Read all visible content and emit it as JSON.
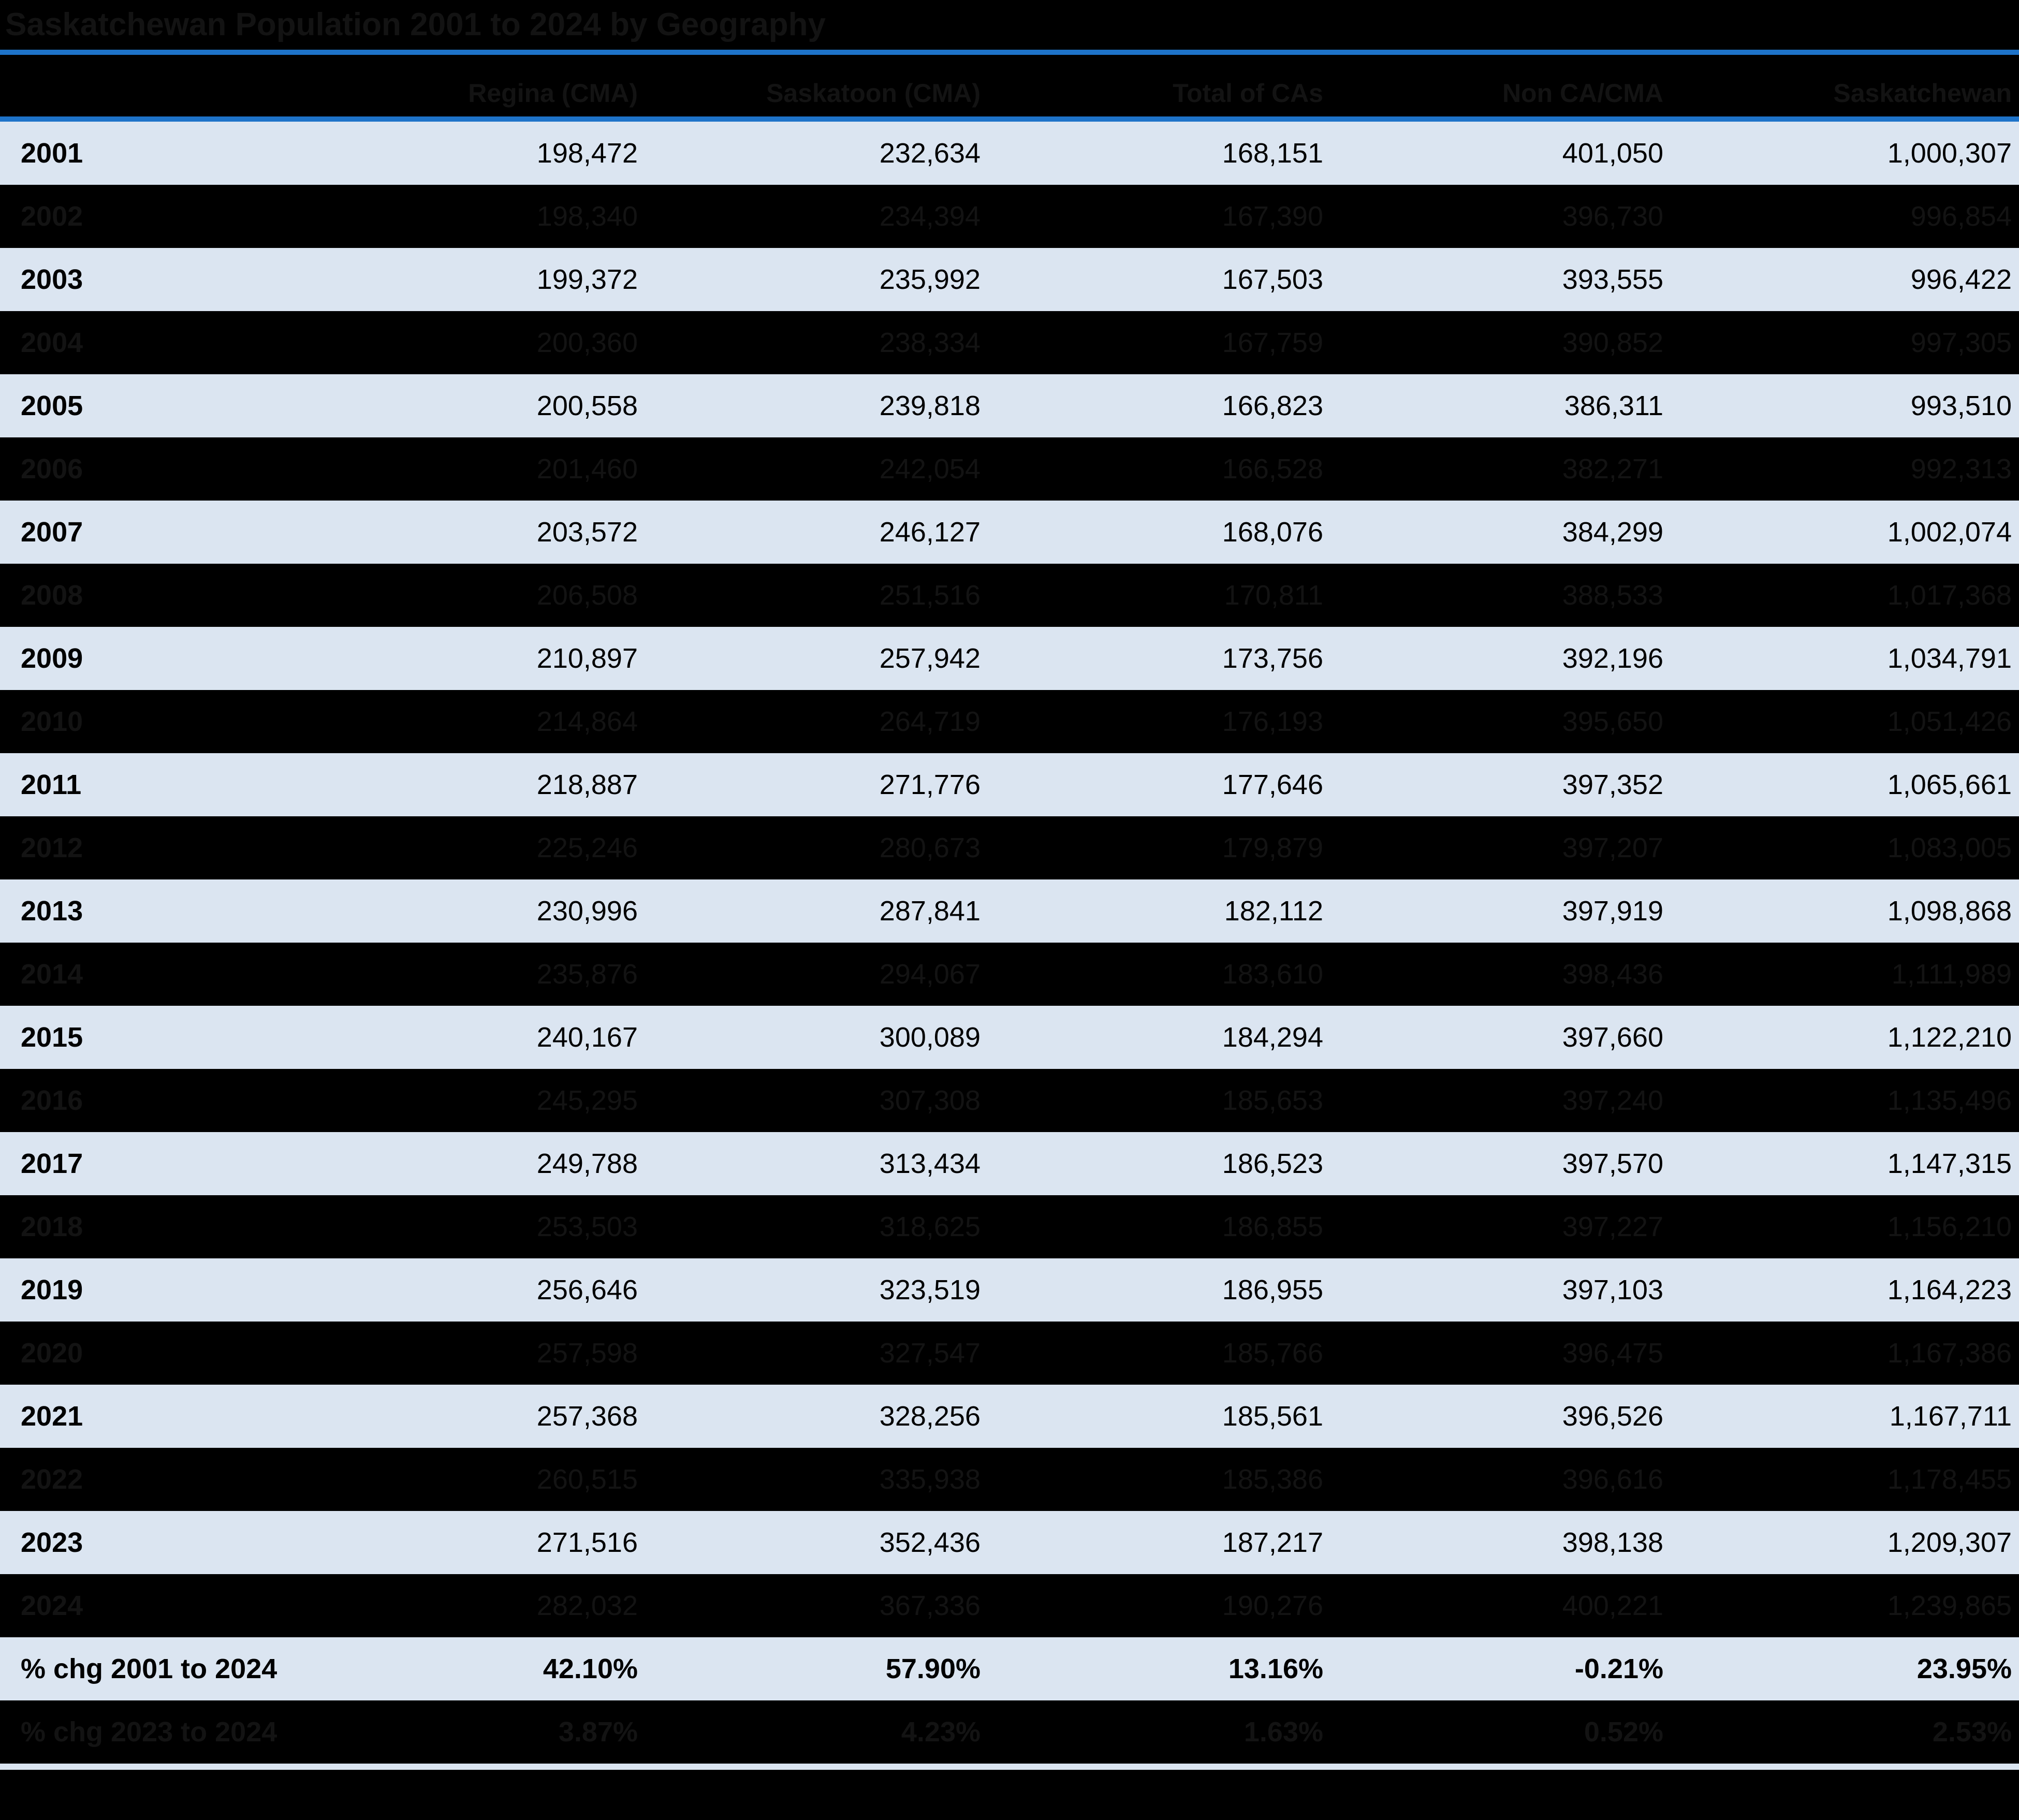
{
  "title": "Saskatchewan Population 2001 to 2024 by Geography",
  "colors": {
    "accent_rule": "#1e73c9",
    "row_light_bg": "#dbe5f1",
    "row_dark_bg": "#000000",
    "text_on_light": "#000000",
    "text_on_dark": "#131313"
  },
  "chart_data": {
    "type": "table",
    "title": "Saskatchewan Population 2001 to 2024 by Geography",
    "columns": [
      "",
      "Regina (CMA)",
      "Saskatoon (CMA)",
      "Total of CAs",
      "Non CA/CMA",
      "Saskatchewan"
    ],
    "rows": [
      {
        "label": "2001",
        "shade": "light",
        "summary": false,
        "values": [
          "198,472",
          "232,634",
          "168,151",
          "401,050",
          "1,000,307"
        ]
      },
      {
        "label": "2002",
        "shade": "dark",
        "summary": false,
        "values": [
          "198,340",
          "234,394",
          "167,390",
          "396,730",
          "996,854"
        ]
      },
      {
        "label": "2003",
        "shade": "light",
        "summary": false,
        "values": [
          "199,372",
          "235,992",
          "167,503",
          "393,555",
          "996,422"
        ]
      },
      {
        "label": "2004",
        "shade": "dark",
        "summary": false,
        "values": [
          "200,360",
          "238,334",
          "167,759",
          "390,852",
          "997,305"
        ]
      },
      {
        "label": "2005",
        "shade": "light",
        "summary": false,
        "values": [
          "200,558",
          "239,818",
          "166,823",
          "386,311",
          "993,510"
        ]
      },
      {
        "label": "2006",
        "shade": "dark",
        "summary": false,
        "values": [
          "201,460",
          "242,054",
          "166,528",
          "382,271",
          "992,313"
        ]
      },
      {
        "label": "2007",
        "shade": "light",
        "summary": false,
        "values": [
          "203,572",
          "246,127",
          "168,076",
          "384,299",
          "1,002,074"
        ]
      },
      {
        "label": "2008",
        "shade": "dark",
        "summary": false,
        "values": [
          "206,508",
          "251,516",
          "170,811",
          "388,533",
          "1,017,368"
        ]
      },
      {
        "label": "2009",
        "shade": "light",
        "summary": false,
        "values": [
          "210,897",
          "257,942",
          "173,756",
          "392,196",
          "1,034,791"
        ]
      },
      {
        "label": "2010",
        "shade": "dark",
        "summary": false,
        "values": [
          "214,864",
          "264,719",
          "176,193",
          "395,650",
          "1,051,426"
        ]
      },
      {
        "label": "2011",
        "shade": "light",
        "summary": false,
        "values": [
          "218,887",
          "271,776",
          "177,646",
          "397,352",
          "1,065,661"
        ]
      },
      {
        "label": "2012",
        "shade": "dark",
        "summary": false,
        "values": [
          "225,246",
          "280,673",
          "179,879",
          "397,207",
          "1,083,005"
        ]
      },
      {
        "label": "2013",
        "shade": "light",
        "summary": false,
        "values": [
          "230,996",
          "287,841",
          "182,112",
          "397,919",
          "1,098,868"
        ]
      },
      {
        "label": "2014",
        "shade": "dark",
        "summary": false,
        "values": [
          "235,876",
          "294,067",
          "183,610",
          "398,436",
          "1,111,989"
        ]
      },
      {
        "label": "2015",
        "shade": "light",
        "summary": false,
        "values": [
          "240,167",
          "300,089",
          "184,294",
          "397,660",
          "1,122,210"
        ]
      },
      {
        "label": "2016",
        "shade": "dark",
        "summary": false,
        "values": [
          "245,295",
          "307,308",
          "185,653",
          "397,240",
          "1,135,496"
        ]
      },
      {
        "label": "2017",
        "shade": "light",
        "summary": false,
        "values": [
          "249,788",
          "313,434",
          "186,523",
          "397,570",
          "1,147,315"
        ]
      },
      {
        "label": "2018",
        "shade": "dark",
        "summary": false,
        "values": [
          "253,503",
          "318,625",
          "186,855",
          "397,227",
          "1,156,210"
        ]
      },
      {
        "label": "2019",
        "shade": "light",
        "summary": false,
        "values": [
          "256,646",
          "323,519",
          "186,955",
          "397,103",
          "1,164,223"
        ]
      },
      {
        "label": "2020",
        "shade": "dark",
        "summary": false,
        "values": [
          "257,598",
          "327,547",
          "185,766",
          "396,475",
          "1,167,386"
        ]
      },
      {
        "label": "2021",
        "shade": "light",
        "summary": false,
        "values": [
          "257,368",
          "328,256",
          "185,561",
          "396,526",
          "1,167,711"
        ]
      },
      {
        "label": "2022",
        "shade": "dark",
        "summary": false,
        "values": [
          "260,515",
          "335,938",
          "185,386",
          "396,616",
          "1,178,455"
        ]
      },
      {
        "label": "2023",
        "shade": "light",
        "summary": false,
        "values": [
          "271,516",
          "352,436",
          "187,217",
          "398,138",
          "1,209,307"
        ]
      },
      {
        "label": "2024",
        "shade": "dark",
        "summary": false,
        "values": [
          "282,032",
          "367,336",
          "190,276",
          "400,221",
          "1,239,865"
        ]
      },
      {
        "label": "% chg 2001 to 2024",
        "shade": "light",
        "summary": true,
        "values": [
          "42.10%",
          "57.90%",
          "13.16%",
          "-0.21%",
          "23.95%"
        ]
      },
      {
        "label": "% chg 2023 to 2024",
        "shade": "dark",
        "summary": true,
        "values": [
          "3.87%",
          "4.23%",
          "1.63%",
          "0.52%",
          "2.53%"
        ]
      }
    ]
  }
}
